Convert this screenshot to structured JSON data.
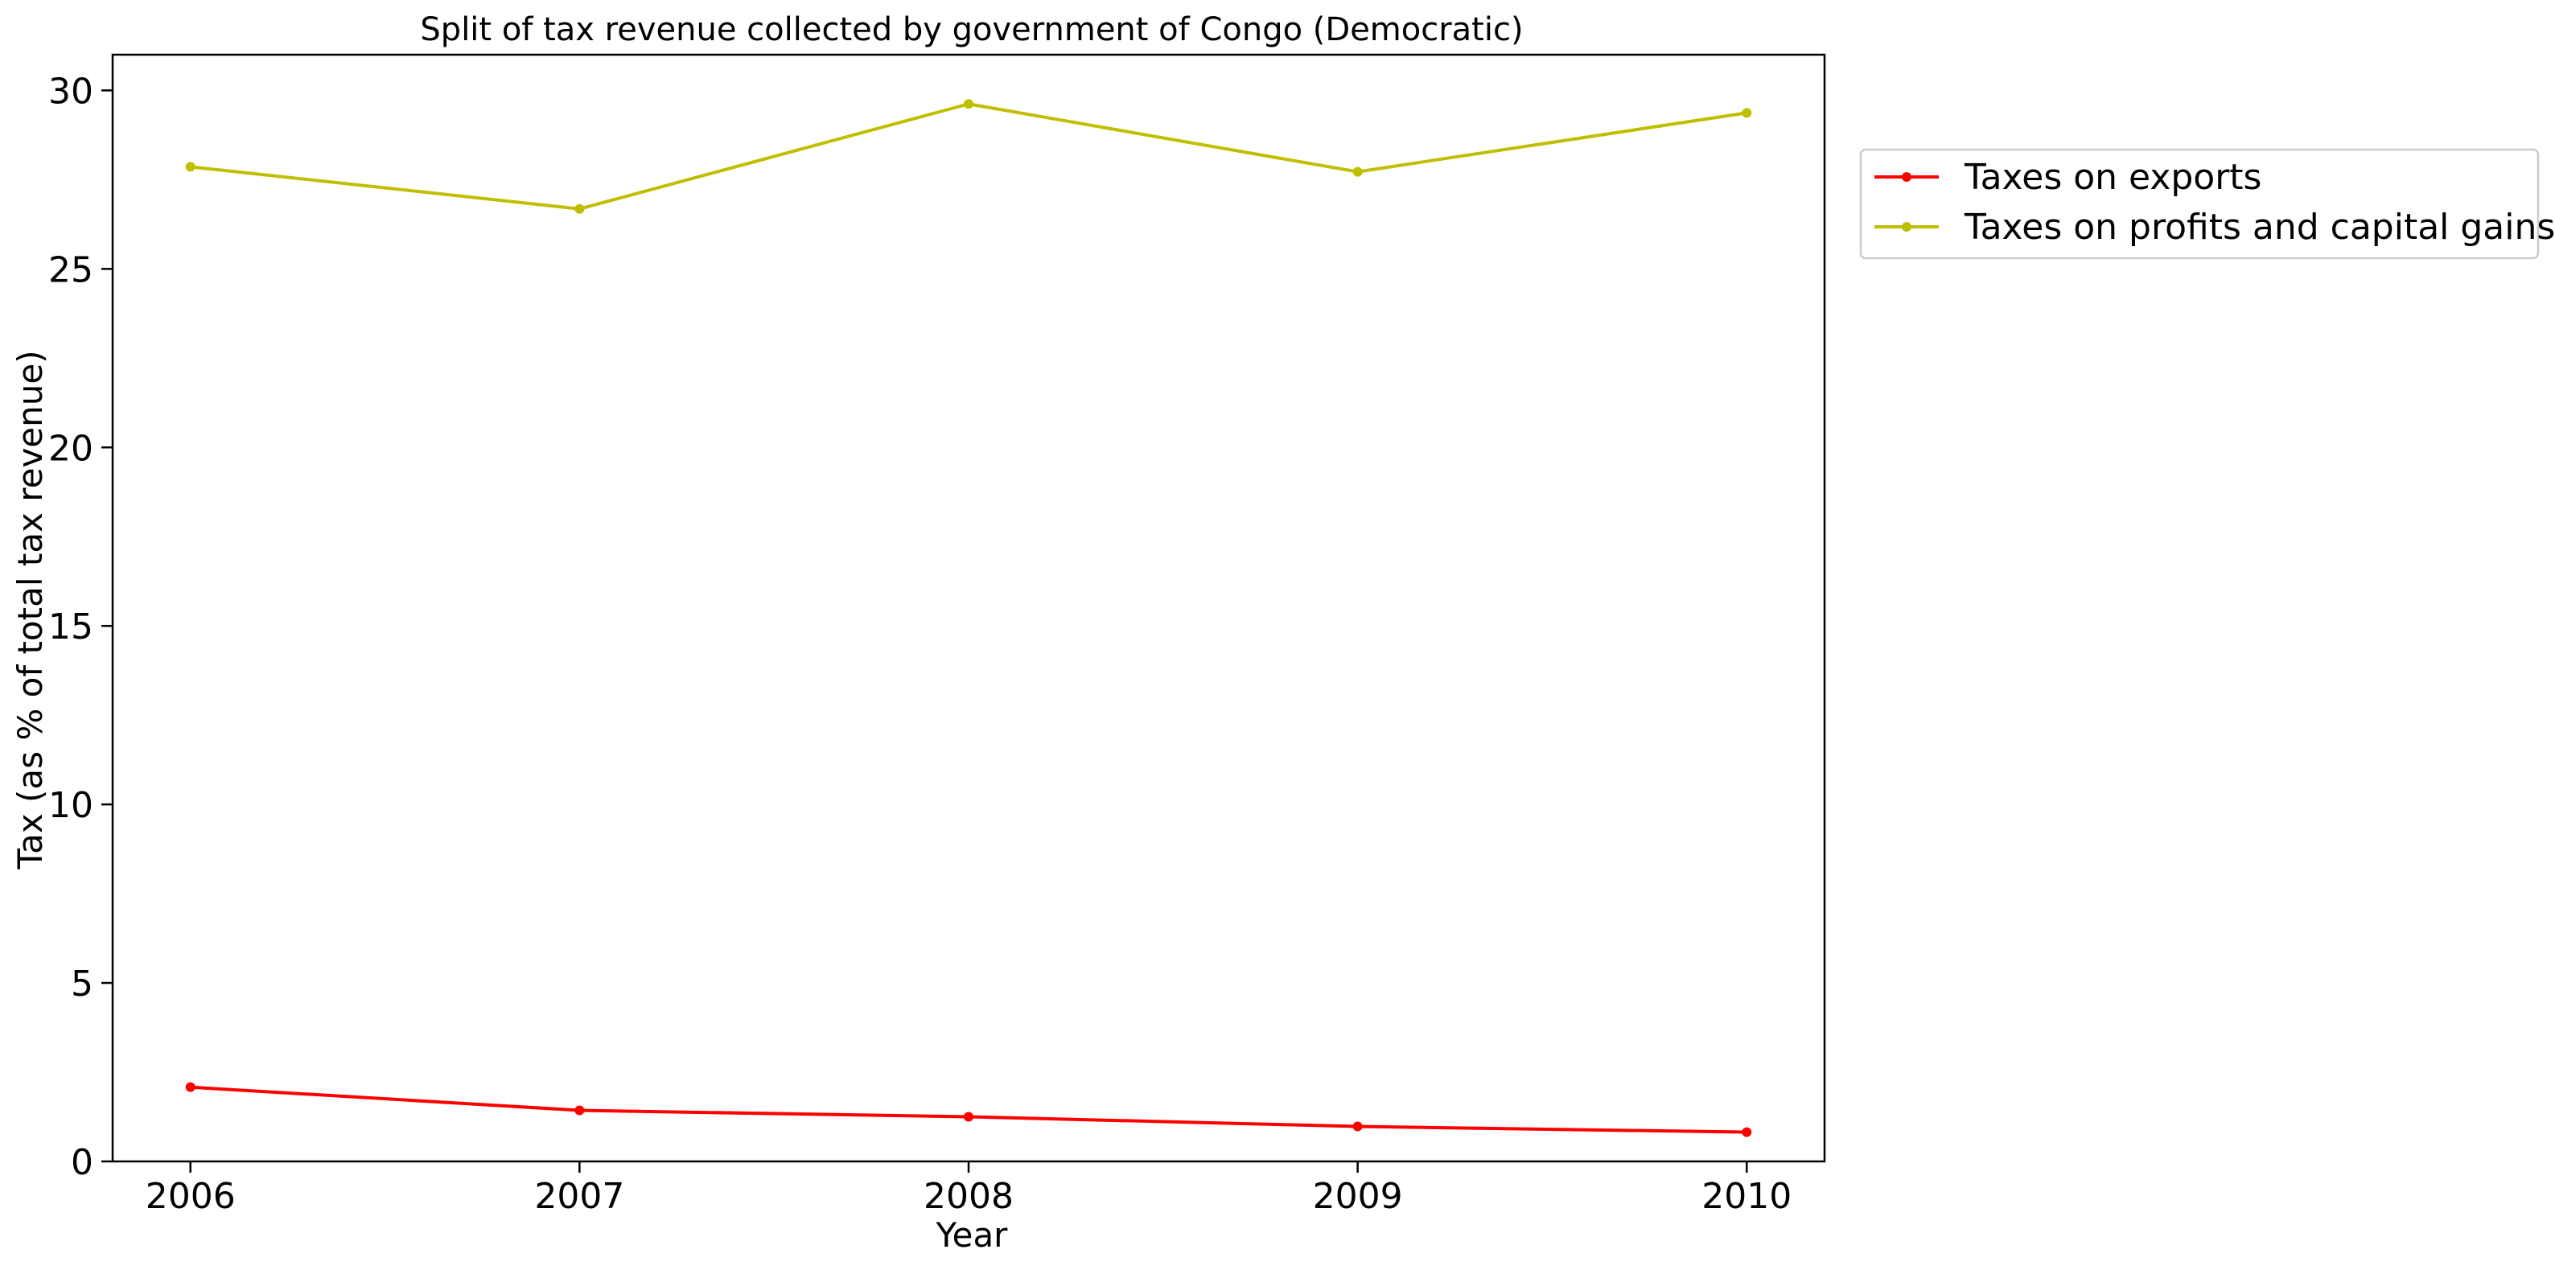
{
  "chart_data": {
    "type": "line",
    "title": "Split of tax revenue collected by government of Congo (Democratic)",
    "xlabel": "Year",
    "ylabel": "Tax (as % of total tax revenue)",
    "x": [
      2006,
      2007,
      2008,
      2009,
      2010
    ],
    "x_tick_labels": [
      "2006",
      "2007",
      "2008",
      "2009",
      "2010"
    ],
    "xlim": [
      2005.8,
      2010.2
    ],
    "ylim": [
      0,
      31
    ],
    "y_ticks": [
      0,
      5,
      10,
      15,
      20,
      25,
      30
    ],
    "y_tick_labels": [
      "0",
      "5",
      "10",
      "15",
      "20",
      "25",
      "30"
    ],
    "grid": false,
    "legend_placement": "outside-top-right",
    "series": [
      {
        "name": "Taxes on exports",
        "color": "#ff0000",
        "marker": "circle",
        "values": [
          2.08,
          1.43,
          1.25,
          0.98,
          0.82
        ]
      },
      {
        "name": "Taxes on profits and capital gains",
        "color": "#bfbf00",
        "marker": "circle",
        "values": [
          27.86,
          26.68,
          29.62,
          27.72,
          29.37
        ]
      }
    ]
  }
}
